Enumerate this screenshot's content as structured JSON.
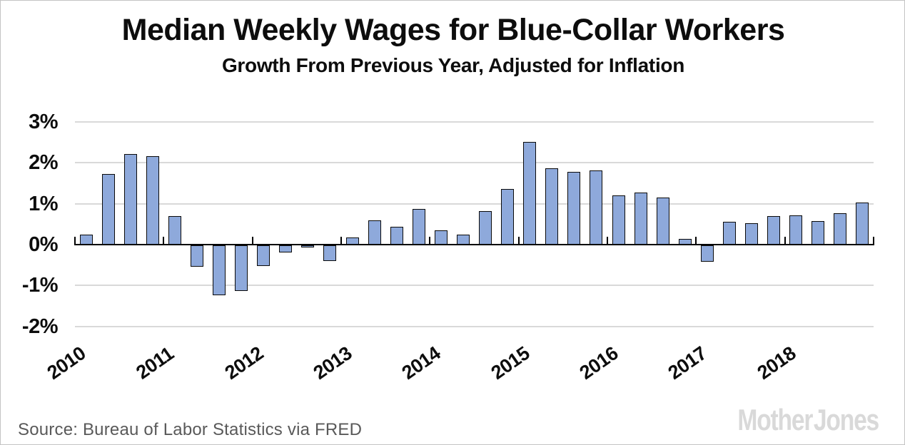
{
  "chart_data": {
    "type": "bar",
    "title": "Median Weekly Wages for Blue-Collar Workers",
    "subtitle": "Growth From Previous Year, Adjusted for Inflation",
    "source": "Source: Bureau of Labor Statistics via FRED",
    "brand": "Mother Jones",
    "categories": [
      "2010 Q1",
      "2010 Q2",
      "2010 Q3",
      "2010 Q4",
      "2011 Q1",
      "2011 Q2",
      "2011 Q3",
      "2011 Q4",
      "2012 Q1",
      "2012 Q2",
      "2012 Q3",
      "2012 Q4",
      "2013 Q1",
      "2013 Q2",
      "2013 Q3",
      "2013 Q4",
      "2014 Q1",
      "2014 Q2",
      "2014 Q3",
      "2014 Q4",
      "2015 Q1",
      "2015 Q2",
      "2015 Q3",
      "2015 Q4",
      "2016 Q1",
      "2016 Q2",
      "2016 Q3",
      "2016 Q4",
      "2017 Q1",
      "2017 Q2",
      "2017 Q3",
      "2017 Q4",
      "2018 Q1",
      "2018 Q2",
      "2018 Q3",
      "2018 Q4"
    ],
    "values": [
      0.25,
      1.72,
      2.22,
      2.16,
      0.69,
      -0.53,
      -1.22,
      -1.12,
      -0.51,
      -0.17,
      -0.06,
      -0.38,
      0.17,
      0.6,
      0.43,
      0.87,
      0.35,
      0.25,
      0.82,
      1.36,
      2.52,
      1.86,
      1.78,
      1.81,
      1.21,
      1.27,
      1.15,
      0.14,
      -0.41,
      0.56,
      0.52,
      0.7,
      0.71,
      0.58,
      0.76,
      1.03
    ],
    "x_year_labels": [
      "2010",
      "2011",
      "2012",
      "2013",
      "2014",
      "2015",
      "2016",
      "2017",
      "2018"
    ],
    "y_ticks": [
      {
        "v": 3,
        "label": "3%"
      },
      {
        "v": 2,
        "label": "2%"
      },
      {
        "v": 1,
        "label": "1%"
      },
      {
        "v": 0,
        "label": "0%"
      },
      {
        "v": -1,
        "label": "-1%"
      },
      {
        "v": -2,
        "label": "-2%"
      }
    ],
    "ylim": [
      -2,
      3
    ],
    "xlabel": "",
    "ylabel": "",
    "grid": "horizontal",
    "legend": "none",
    "unit": "percent",
    "colors": {
      "bar_fill": "#8EA9DB",
      "bar_border": "#0a0a0a",
      "gridline": "#d9d9d9",
      "axis": "#000000",
      "text": "#0d0d0d",
      "source_text": "#595959",
      "brand_text": "#d9d9d9"
    }
  }
}
